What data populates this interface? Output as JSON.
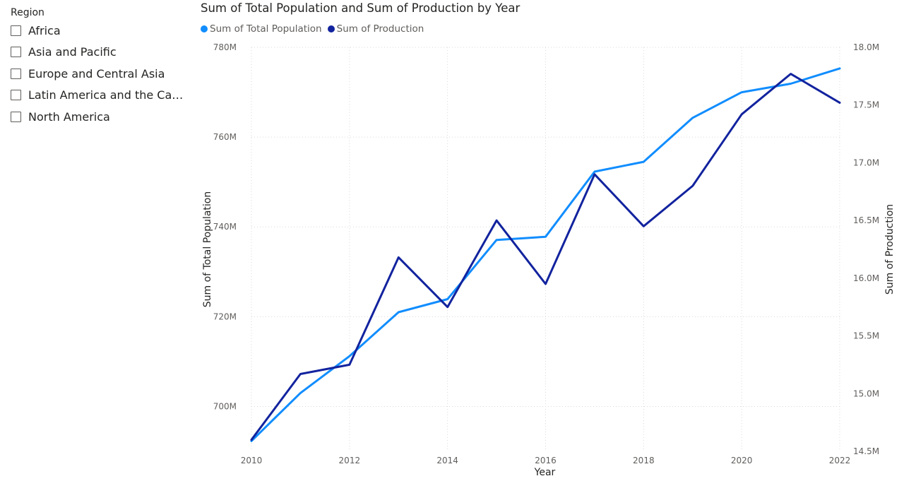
{
  "slicer": {
    "title": "Region",
    "items": [
      {
        "label": "Africa"
      },
      {
        "label": "Asia and Pacific"
      },
      {
        "label": "Europe and Central Asia"
      },
      {
        "label": "Latin America and the Carib..."
      },
      {
        "label": "North America"
      }
    ]
  },
  "chart_data": {
    "type": "line",
    "title": "Sum of Total Population and Sum of Production by Year",
    "xlabel": "Year",
    "ylabel": "Sum of Total Population",
    "y2label": "Sum of Production",
    "x": [
      2010,
      2011,
      2012,
      2013,
      2014,
      2015,
      2016,
      2017,
      2018,
      2019,
      2020,
      2021,
      2022
    ],
    "x_ticks": [
      "2010",
      "2012",
      "2014",
      "2016",
      "2018",
      "2020",
      "2022"
    ],
    "y_ticks": [
      "780M",
      "760M",
      "740M",
      "720M",
      "700M"
    ],
    "y2_ticks": [
      "18.0M",
      "17.5M",
      "17.0M",
      "16.5M",
      "16.0M",
      "15.5M",
      "15.0M",
      "14.5M"
    ],
    "ylim": [
      690,
      780
    ],
    "y2lim": [
      14.5,
      18.0
    ],
    "grid": true,
    "legend_position": "top-left",
    "series": [
      {
        "name": "Sum of Total  Population",
        "axis": "left",
        "color": "#118DFF",
        "values": [
          692.3,
          703.0,
          711.2,
          721.0,
          723.9,
          737.1,
          737.8,
          752.3,
          754.5,
          764.3,
          770.0,
          771.9,
          775.3
        ]
      },
      {
        "name": "Sum of Production",
        "axis": "right",
        "color": "#12239E",
        "values": [
          14.6,
          15.17,
          15.25,
          16.18,
          15.75,
          16.5,
          15.95,
          16.9,
          16.45,
          16.8,
          17.42,
          17.77,
          17.52
        ]
      }
    ]
  }
}
